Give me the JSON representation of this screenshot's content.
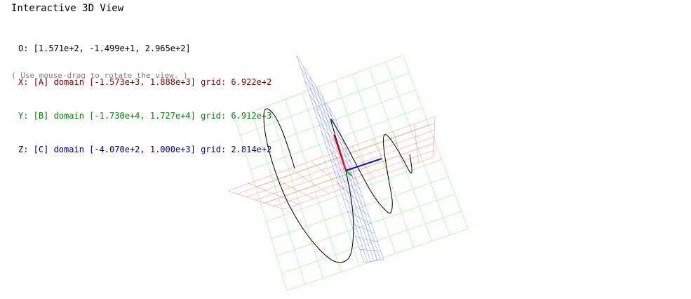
{
  "title": "Interactive 3D View",
  "origin_line": "O: [1.571e+2, -1.499e+1, 2.965e+2]",
  "axes": [
    {
      "id": "x",
      "text": "X: [A] domain [-1.573e+3, 1.888e+3] grid: 6.922e+2",
      "color": "#800000"
    },
    {
      "id": "y",
      "text": "Y: [B] domain [-1.730e+4, 1.727e+4] grid: 6.912e+3",
      "color": "#008000"
    },
    {
      "id": "z",
      "text": "Z: [C] domain [-4.070e+2, 1.000e+3] grid: 2.814e+2",
      "color": "#000080"
    }
  ],
  "hint": "( Use mouse-drag to rotate the view. )",
  "colors": {
    "green_grid": "#90ee90",
    "blue_grid": "#8080ff",
    "red_grid": "#ff8080",
    "axis_x": "#ff0000",
    "axis_y": "#00cc00",
    "axis_z": "#0000ff",
    "curve": "#000000"
  }
}
